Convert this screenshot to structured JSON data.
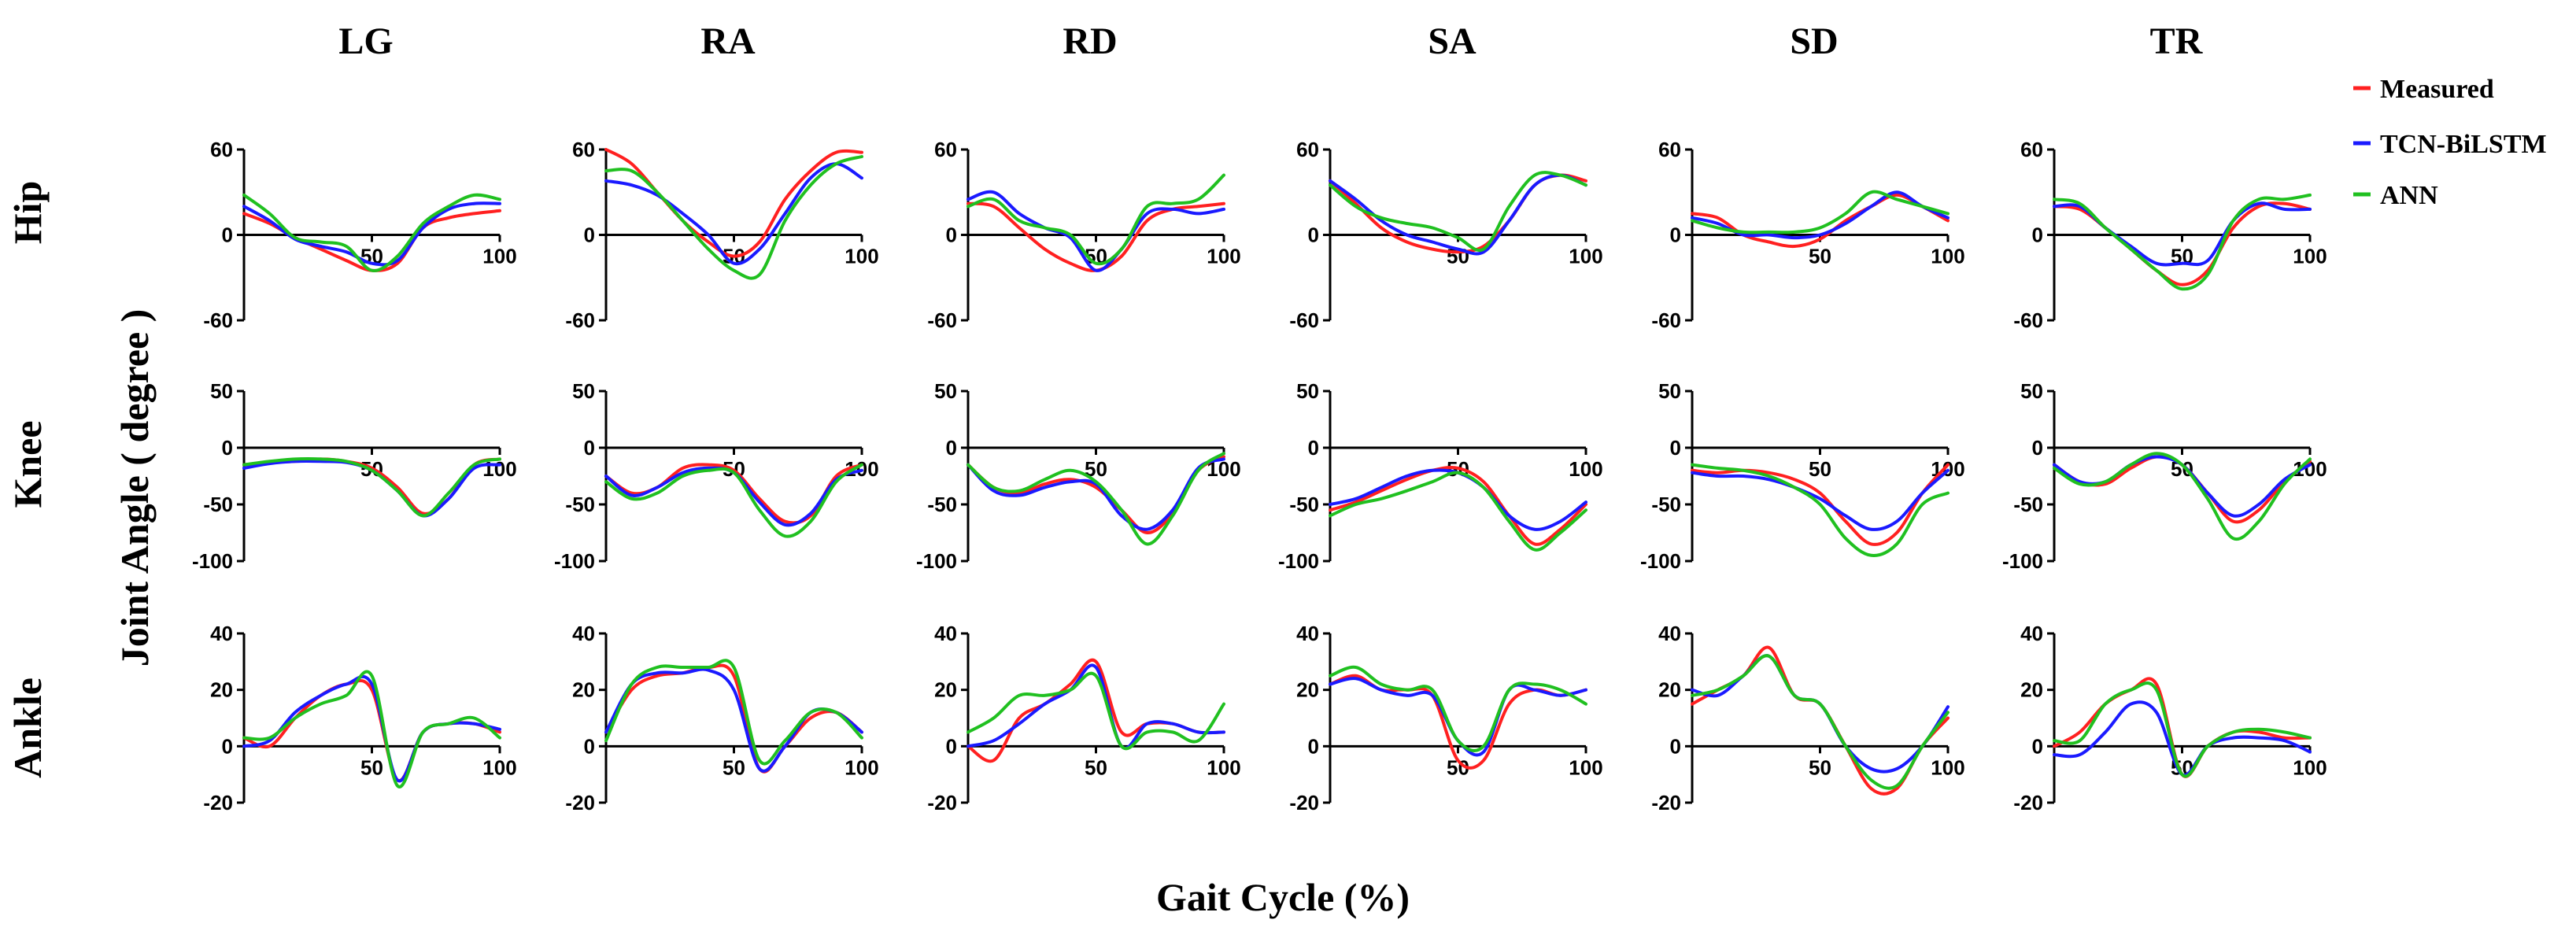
{
  "chart_data": {
    "type": "line",
    "layout": "grid of small multiples (3 rows x 6 columns)",
    "ylabel": "Joint Angle ( degree )",
    "xlabel": "Gait Cycle (%)",
    "columns": [
      "LG",
      "RA",
      "RD",
      "SA",
      "SD",
      "TR"
    ],
    "rows": [
      {
        "name": "Hip",
        "ylim": [
          -60,
          60
        ],
        "yticks": [
          "60",
          "0",
          "-60"
        ]
      },
      {
        "name": "Knee",
        "ylim": [
          -100,
          50
        ],
        "yticks": [
          "50",
          "0",
          "-50",
          "-100"
        ]
      },
      {
        "name": "Ankle",
        "ylim": [
          -20,
          40
        ],
        "yticks": [
          "40",
          "20",
          "0",
          "-20"
        ]
      }
    ],
    "xlim": [
      0,
      100
    ],
    "xticks": [
      "50",
      "100"
    ],
    "x": [
      0,
      10,
      20,
      30,
      40,
      50,
      60,
      70,
      80,
      90,
      100
    ],
    "legend": {
      "position": "top-right",
      "entries": [
        {
          "name": "Measured",
          "color": "#ff2020"
        },
        {
          "name": "TCN-BiLSTM",
          "color": "#1a1aff"
        },
        {
          "name": "ANN",
          "color": "#20c020"
        }
      ]
    },
    "panels": {
      "Hip": {
        "LG": {
          "Measured": [
            15,
            8,
            -2,
            -10,
            -18,
            -25,
            -20,
            5,
            12,
            15,
            17
          ],
          "TCN-BiLSTM": [
            20,
            10,
            -3,
            -8,
            -12,
            -20,
            -18,
            5,
            18,
            22,
            22
          ],
          "ANN": [
            28,
            15,
            -2,
            -5,
            -8,
            -25,
            -15,
            8,
            20,
            28,
            25
          ]
        },
        "RA": {
          "Measured": [
            60,
            50,
            30,
            10,
            -5,
            -15,
            -5,
            25,
            45,
            58,
            58
          ],
          "TCN-BiLSTM": [
            38,
            35,
            28,
            15,
            0,
            -20,
            -10,
            15,
            40,
            50,
            40
          ],
          "ANN": [
            45,
            45,
            30,
            10,
            -10,
            -25,
            -28,
            10,
            35,
            50,
            55
          ]
        },
        "RD": {
          "Measured": [
            22,
            20,
            5,
            -10,
            -20,
            -25,
            -15,
            10,
            18,
            20,
            22
          ],
          "TCN-BiLSTM": [
            25,
            30,
            15,
            5,
            -2,
            -25,
            -10,
            15,
            18,
            15,
            18
          ],
          "ANN": [
            20,
            25,
            10,
            5,
            0,
            -20,
            -10,
            20,
            22,
            25,
            42
          ]
        },
        "SA": {
          "Measured": [
            38,
            22,
            5,
            -5,
            -10,
            -12,
            -8,
            10,
            35,
            42,
            38
          ],
          "TCN-BiLSTM": [
            38,
            25,
            10,
            0,
            -5,
            -10,
            -12,
            10,
            35,
            42,
            35
          ],
          "ANN": [
            35,
            20,
            12,
            8,
            5,
            -2,
            -10,
            20,
            42,
            42,
            35
          ]
        },
        "SD": {
          "Measured": [
            15,
            12,
            0,
            -5,
            -8,
            -3,
            10,
            20,
            28,
            20,
            10
          ],
          "TCN-BiLSTM": [
            12,
            8,
            0,
            0,
            -2,
            0,
            8,
            20,
            30,
            20,
            12
          ],
          "ANN": [
            10,
            5,
            2,
            2,
            2,
            5,
            15,
            30,
            25,
            20,
            15
          ]
        },
        "TR": {
          "Measured": [
            20,
            18,
            5,
            -10,
            -25,
            -35,
            -25,
            5,
            20,
            22,
            18
          ],
          "TCN-BiLSTM": [
            20,
            20,
            5,
            -8,
            -20,
            -20,
            -18,
            10,
            22,
            18,
            18
          ],
          "ANN": [
            25,
            22,
            5,
            -10,
            -25,
            -38,
            -28,
            10,
            25,
            25,
            28
          ]
        }
      },
      "Knee": {
        "LG": {
          "Measured": [
            -15,
            -13,
            -12,
            -10,
            -12,
            -18,
            -35,
            -58,
            -45,
            -15,
            -10
          ],
          "TCN-BiLSTM": [
            -18,
            -14,
            -12,
            -12,
            -13,
            -20,
            -38,
            -60,
            -45,
            -18,
            -15
          ],
          "ANN": [
            -15,
            -12,
            -10,
            -10,
            -12,
            -20,
            -38,
            -60,
            -40,
            -15,
            -10
          ]
        },
        "RA": {
          "Measured": [
            -25,
            -40,
            -35,
            -18,
            -15,
            -20,
            -45,
            -65,
            -60,
            -25,
            -15
          ],
          "TCN-BiLSTM": [
            -25,
            -42,
            -35,
            -22,
            -18,
            -22,
            -48,
            -68,
            -58,
            -28,
            -20
          ],
          "ANN": [
            -30,
            -45,
            -40,
            -25,
            -20,
            -22,
            -55,
            -78,
            -65,
            -30,
            -15
          ]
        },
        "RD": {
          "Measured": [
            -15,
            -35,
            -40,
            -32,
            -28,
            -35,
            -55,
            -75,
            -58,
            -20,
            -8
          ],
          "TCN-BiLSTM": [
            -15,
            -38,
            -42,
            -35,
            -30,
            -32,
            -60,
            -72,
            -55,
            -18,
            -10
          ],
          "ANN": [
            -15,
            -35,
            -38,
            -28,
            -20,
            -30,
            -55,
            -85,
            -60,
            -20,
            -5
          ]
        },
        "SA": {
          "Measured": [
            -55,
            -48,
            -38,
            -28,
            -20,
            -18,
            -30,
            -60,
            -85,
            -72,
            -50
          ],
          "TCN-BiLSTM": [
            -50,
            -45,
            -35,
            -25,
            -20,
            -22,
            -35,
            -60,
            -72,
            -65,
            -48
          ],
          "ANN": [
            -60,
            -50,
            -45,
            -38,
            -30,
            -22,
            -35,
            -65,
            -90,
            -75,
            -55
          ]
        },
        "SD": {
          "Measured": [
            -20,
            -22,
            -20,
            -22,
            -28,
            -40,
            -65,
            -85,
            -75,
            -40,
            -15
          ],
          "TCN-BiLSTM": [
            -22,
            -25,
            -25,
            -28,
            -35,
            -45,
            -60,
            -72,
            -65,
            -40,
            -20
          ],
          "ANN": [
            -15,
            -18,
            -20,
            -25,
            -35,
            -50,
            -80,
            -95,
            -85,
            -50,
            -40
          ]
        },
        "TR": {
          "Measured": [
            -15,
            -30,
            -32,
            -18,
            -8,
            -15,
            -40,
            -65,
            -55,
            -30,
            -12
          ],
          "TCN-BiLSTM": [
            -15,
            -30,
            -30,
            -15,
            -8,
            -15,
            -40,
            -60,
            -50,
            -28,
            -15
          ],
          "ANN": [
            -18,
            -32,
            -30,
            -15,
            -5,
            -15,
            -45,
            -80,
            -65,
            -32,
            -10
          ]
        }
      },
      "Ankle": {
        "LG": {
          "Measured": [
            3,
            0,
            10,
            18,
            22,
            20,
            -12,
            5,
            8,
            8,
            5
          ],
          "TCN-BiLSTM": [
            0,
            2,
            12,
            18,
            22,
            22,
            -12,
            5,
            8,
            8,
            6
          ],
          "ANN": [
            3,
            3,
            10,
            15,
            18,
            25,
            -14,
            5,
            8,
            10,
            3
          ]
        },
        "RA": {
          "Measured": [
            5,
            20,
            25,
            26,
            28,
            25,
            -8,
            0,
            10,
            12,
            5
          ],
          "TCN-BiLSTM": [
            5,
            22,
            26,
            26,
            27,
            20,
            -8,
            0,
            12,
            12,
            5
          ],
          "ANN": [
            2,
            22,
            28,
            28,
            28,
            28,
            -5,
            2,
            12,
            12,
            3
          ]
        },
        "RD": {
          "Measured": [
            0,
            -5,
            10,
            15,
            22,
            30,
            5,
            8,
            8,
            5,
            5
          ],
          "TCN-BiLSTM": [
            0,
            2,
            8,
            15,
            20,
            28,
            0,
            8,
            8,
            5,
            5
          ],
          "ANN": [
            5,
            10,
            18,
            18,
            20,
            25,
            0,
            5,
            5,
            2,
            15
          ]
        },
        "SA": {
          "Measured": [
            22,
            25,
            20,
            20,
            18,
            -5,
            -5,
            15,
            20,
            18,
            20
          ],
          "TCN-BiLSTM": [
            22,
            24,
            20,
            18,
            18,
            2,
            -2,
            20,
            20,
            18,
            20
          ],
          "ANN": [
            25,
            28,
            22,
            20,
            20,
            2,
            0,
            20,
            22,
            20,
            15
          ]
        },
        "SD": {
          "Measured": [
            15,
            20,
            25,
            35,
            18,
            15,
            0,
            -15,
            -15,
            0,
            10
          ],
          "TCN-BiLSTM": [
            20,
            18,
            25,
            32,
            18,
            15,
            0,
            -8,
            -8,
            0,
            14
          ],
          "ANN": [
            18,
            20,
            25,
            32,
            18,
            15,
            0,
            -12,
            -14,
            0,
            12
          ]
        },
        "TR": {
          "Measured": [
            0,
            5,
            15,
            20,
            22,
            -10,
            0,
            5,
            5,
            3,
            3
          ],
          "TCN-BiLSTM": [
            -3,
            -3,
            5,
            15,
            12,
            -10,
            0,
            3,
            3,
            2,
            -2
          ],
          "ANN": [
            2,
            2,
            15,
            20,
            20,
            -10,
            0,
            5,
            6,
            5,
            3
          ]
        }
      }
    }
  }
}
